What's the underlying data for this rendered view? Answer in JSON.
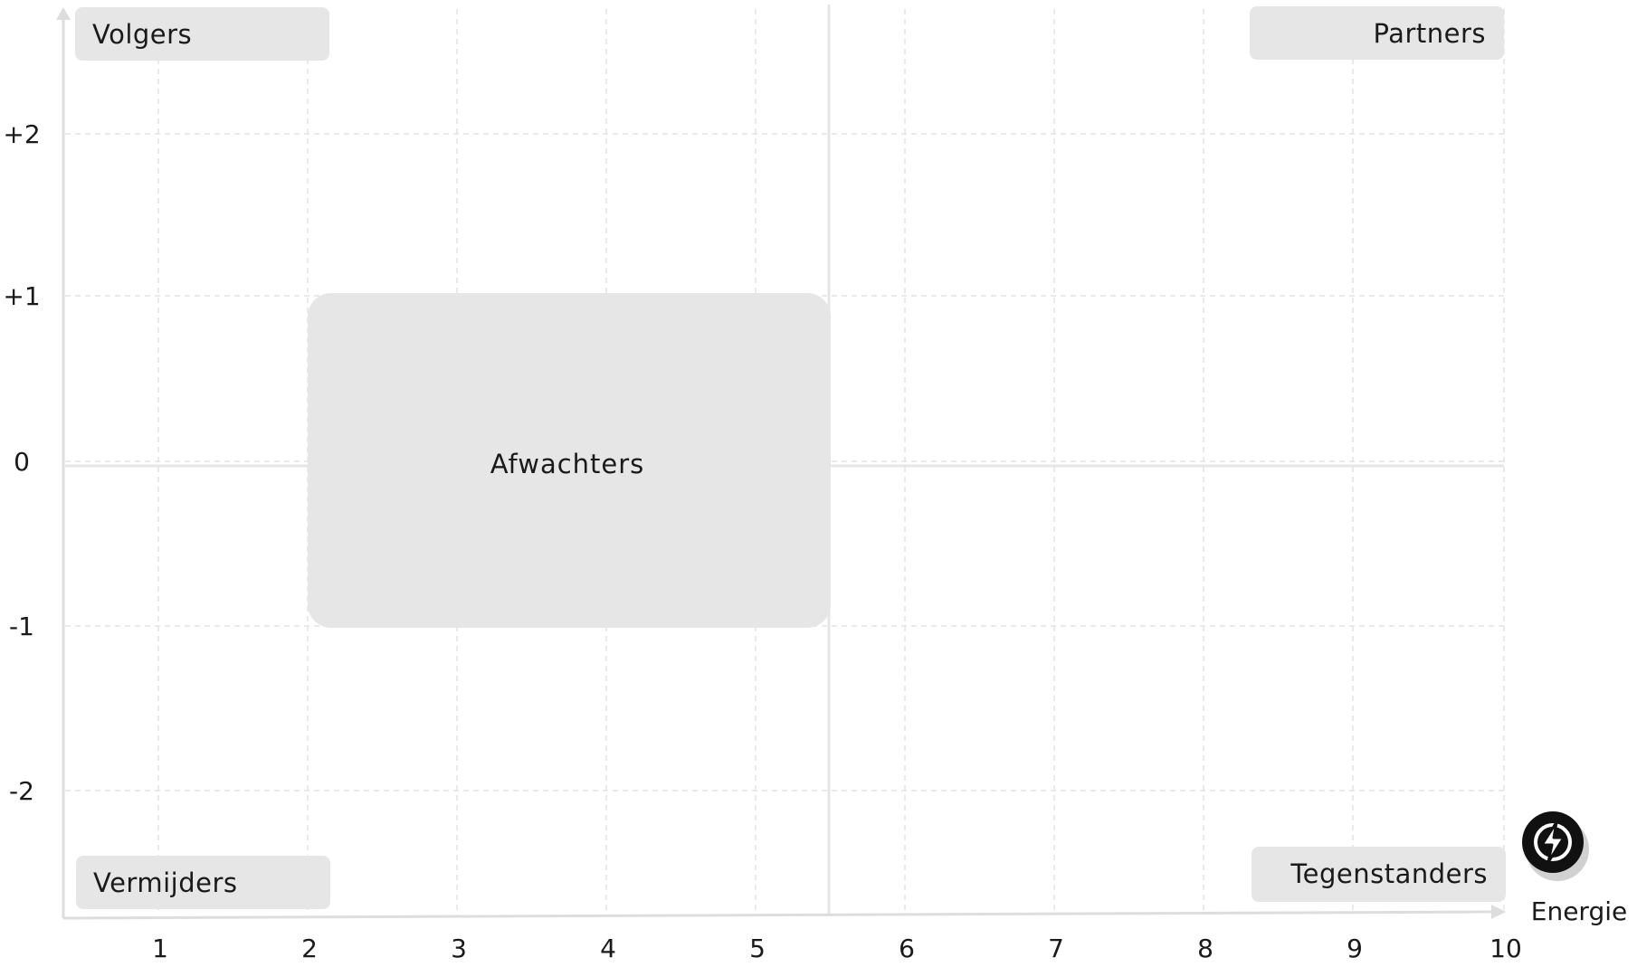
{
  "y_ticks": [
    "+2",
    "+1",
    "0",
    "-1",
    "-2"
  ],
  "x_ticks": [
    "1",
    "2",
    "3",
    "4",
    "5",
    "6",
    "7",
    "8",
    "9",
    "10"
  ],
  "quadrants": {
    "top_left": "Volgers",
    "top_right": "Partners",
    "bottom_left": "Vermijders",
    "bottom_right": "Tegenstanders"
  },
  "zone": {
    "label": "Afwachters",
    "x_range": [
      2,
      5.5
    ],
    "y_range": [
      -1,
      1
    ]
  },
  "x_axis_label": "Energie",
  "icons": {
    "energy": "lightning-bolt-icon"
  },
  "colors": {
    "box": "#e6e6e6",
    "grid": "#e3e3e3",
    "axis": "#dddddd",
    "icon_bg": "#111111"
  }
}
